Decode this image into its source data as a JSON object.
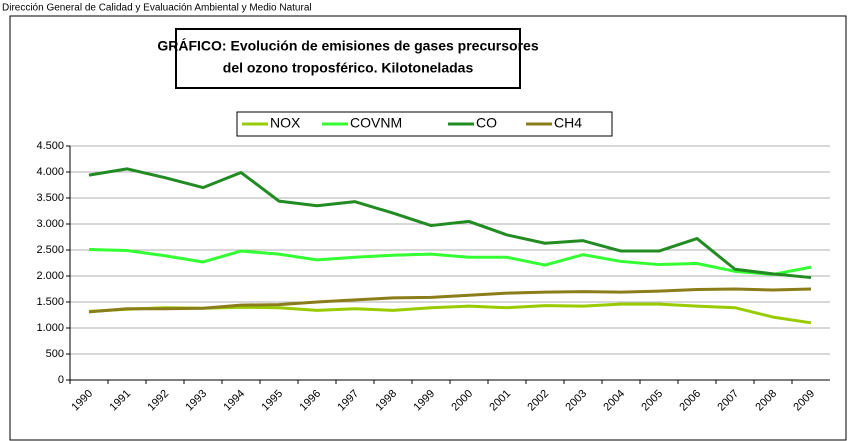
{
  "header": "Dirección General de Calidad y Evaluación Ambiental y Medio Natural",
  "chart_data": {
    "type": "line",
    "title": [
      "GRÁFICO: Evolución de emisiones de gases precursores",
      "del ozono troposférico. Kilotoneladas"
    ],
    "categories": [
      "1990",
      "1991",
      "1992",
      "1993",
      "1994",
      "1995",
      "1996",
      "1997",
      "1998",
      "1999",
      "2000",
      "2001",
      "2002",
      "2003",
      "2004",
      "2005",
      "2006",
      "2007",
      "2008",
      "2009"
    ],
    "series": [
      {
        "name": "NOX",
        "color": "#99cc00",
        "values": [
          1320,
          1360,
          1390,
          1380,
          1400,
          1390,
          1340,
          1370,
          1340,
          1390,
          1420,
          1390,
          1430,
          1420,
          1460,
          1460,
          1420,
          1390,
          1210,
          1100
        ]
      },
      {
        "name": "COVNM",
        "color": "#33ff33",
        "values": [
          2510,
          2490,
          2390,
          2270,
          2480,
          2420,
          2310,
          2360,
          2400,
          2420,
          2360,
          2360,
          2210,
          2410,
          2280,
          2220,
          2240,
          2090,
          2030,
          2170
        ]
      },
      {
        "name": "CO",
        "color": "#228b22",
        "values": [
          3940,
          4060,
          3890,
          3700,
          3990,
          3440,
          3350,
          3430,
          3210,
          2970,
          3050,
          2790,
          2630,
          2680,
          2480,
          2480,
          2720,
          2130,
          2040,
          1970
        ]
      },
      {
        "name": "CH4",
        "color": "#8b7d1a",
        "values": [
          1310,
          1370,
          1370,
          1380,
          1440,
          1450,
          1500,
          1540,
          1580,
          1590,
          1630,
          1670,
          1690,
          1700,
          1690,
          1710,
          1740,
          1750,
          1730,
          1750
        ]
      }
    ],
    "ylim": [
      0,
      4500
    ],
    "yticks": [
      0,
      500,
      {
        "value": 1000,
        "label": "1.000"
      },
      {
        "value": 1500,
        "label": "1.500"
      },
      {
        "value": 2000,
        "label": "2.000"
      },
      {
        "value": 2500,
        "label": "2.500"
      },
      {
        "value": 3000,
        "label": "3.000"
      },
      {
        "value": 3500,
        "label": "3.500"
      },
      {
        "value": 4000,
        "label": "4.000"
      },
      {
        "value": 4500,
        "label": "4.500"
      }
    ],
    "grid": true
  }
}
